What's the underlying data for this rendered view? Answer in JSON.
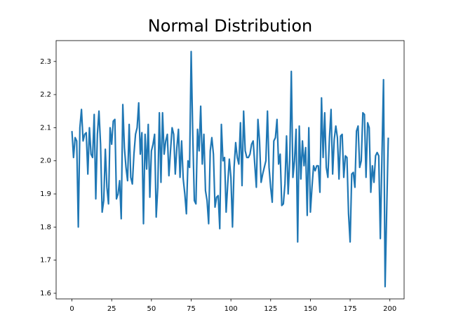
{
  "chart_data": {
    "type": "line",
    "title": "Normal Distribution",
    "x": [
      0,
      1,
      2,
      3,
      4,
      5,
      6,
      7,
      8,
      9,
      10,
      11,
      12,
      13,
      14,
      15,
      16,
      17,
      18,
      19,
      20,
      21,
      22,
      23,
      24,
      25,
      26,
      27,
      28,
      29,
      30,
      31,
      32,
      33,
      34,
      35,
      36,
      37,
      38,
      39,
      40,
      41,
      42,
      43,
      44,
      45,
      46,
      47,
      48,
      49,
      50,
      51,
      52,
      53,
      54,
      55,
      56,
      57,
      58,
      59,
      60,
      61,
      62,
      63,
      64,
      65,
      66,
      67,
      68,
      69,
      70,
      71,
      72,
      73,
      74,
      75,
      76,
      77,
      78,
      79,
      80,
      81,
      82,
      83,
      84,
      85,
      86,
      87,
      88,
      89,
      90,
      91,
      92,
      93,
      94,
      95,
      96,
      97,
      98,
      99,
      100,
      101,
      102,
      103,
      104,
      105,
      106,
      107,
      108,
      109,
      110,
      111,
      112,
      113,
      114,
      115,
      116,
      117,
      118,
      119,
      120,
      121,
      122,
      123,
      124,
      125,
      126,
      127,
      128,
      129,
      130,
      131,
      132,
      133,
      134,
      135,
      136,
      137,
      138,
      139,
      140,
      141,
      142,
      143,
      144,
      145,
      146,
      147,
      148,
      149,
      150,
      151,
      152,
      153,
      154,
      155,
      156,
      157,
      158,
      159,
      160,
      161,
      162,
      163,
      164,
      165,
      166,
      167,
      168,
      169,
      170,
      171,
      172,
      173,
      174,
      175,
      176,
      177,
      178,
      179,
      180,
      181,
      182,
      183,
      184,
      185,
      186,
      187,
      188,
      189,
      190,
      191,
      192,
      193,
      194,
      195,
      196,
      197,
      198,
      199
    ],
    "values": [
      2.09,
      2.01,
      2.07,
      2.06,
      1.8,
      2.1,
      2.155,
      2.06,
      2.08,
      2.085,
      1.96,
      2.1,
      2.02,
      2.01,
      2.14,
      1.885,
      2.08,
      2.15,
      2.05,
      1.845,
      1.88,
      2.035,
      1.92,
      1.87,
      2.1,
      2.05,
      2.12,
      2.125,
      1.885,
      1.9,
      1.94,
      1.825,
      2.17,
      2.04,
      1.98,
      1.94,
      2.11,
      1.95,
      1.93,
      2.02,
      2.08,
      2.1,
      2.175,
      2.02,
      2.085,
      1.81,
      2.08,
      1.975,
      2.11,
      1.89,
      2.03,
      2.05,
      2.08,
      1.83,
      1.92,
      2.145,
      1.935,
      2.145,
      2.02,
      2.06,
      2.08,
      1.955,
      2.03,
      2.1,
      2.08,
      1.96,
      2.04,
      2.095,
      1.95,
      2.06,
      1.945,
      1.9,
      1.84,
      2.0,
      1.98,
      2.33,
      2.08,
      1.88,
      1.87,
      2.095,
      2.03,
      2.165,
      1.99,
      2.08,
      1.91,
      1.88,
      1.81,
      2.03,
      2.07,
      2.02,
      1.86,
      1.89,
      1.895,
      1.795,
      2.11,
      2.0,
      2.01,
      1.845,
      1.93,
      2.005,
      1.95,
      1.8,
      1.98,
      2.055,
      2.01,
      1.99,
      2.115,
      1.925,
      2.15,
      2.03,
      2.01,
      2.01,
      2.02,
      2.05,
      2.06,
      1.99,
      1.92,
      2.125,
      2.06,
      1.935,
      1.96,
      1.98,
      2.0,
      2.15,
      1.98,
      1.92,
      1.875,
      2.06,
      2.07,
      2.125,
      1.99,
      2.02,
      1.865,
      1.87,
      1.93,
      2.075,
      1.9,
      2.0,
      2.27,
      1.95,
      2.0,
      2.095,
      1.755,
      2.105,
      1.945,
      2.06,
      1.985,
      2.04,
      1.835,
      2.1,
      1.845,
      1.92,
      1.985,
      1.97,
      1.985,
      1.985,
      1.905,
      2.19,
      2.01,
      2.145,
      1.98,
      1.95,
      2.07,
      2.155,
      1.96,
      2.065,
      2.105,
      2.07,
      1.945,
      2.075,
      2.08,
      1.95,
      2.015,
      2.01,
      1.84,
      1.755,
      1.96,
      1.965,
      1.92,
      2.09,
      2.105,
      1.98,
      2.0,
      2.145,
      2.14,
      1.95,
      2.115,
      2.1,
      1.905,
      1.985,
      1.935,
      2.015,
      2.025,
      2.015,
      1.765,
      2.01,
      2.245,
      1.62,
      1.85,
      2.07
    ],
    "color": "#1f77b4",
    "xlim": [
      -9.95,
      208.95
    ],
    "xticks": [
      0,
      25,
      50,
      75,
      100,
      125,
      150,
      175,
      200
    ],
    "ylim": [
      1.583,
      2.363
    ],
    "yticks": [
      1.6,
      1.7,
      1.8,
      1.9,
      {
        "value": 2,
        "label": "2.0"
      },
      2.1,
      2.2,
      2.3
    ]
  }
}
